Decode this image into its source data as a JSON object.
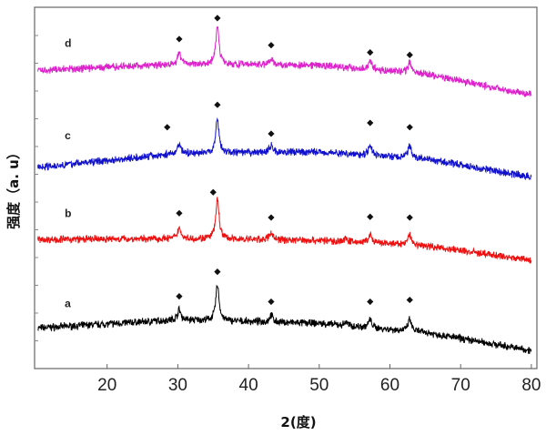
{
  "chart_data": {
    "type": "line",
    "xlabel": "2(度)",
    "ylabel": "强度（a. u）",
    "xlim": [
      10,
      80
    ],
    "ylim": [
      0,
      100
    ],
    "x_ticks": [
      20,
      30,
      40,
      50,
      60,
      70,
      80
    ],
    "y_tick_labels": false,
    "grid": false,
    "legend": "none",
    "marker_symbol": "◆",
    "series": [
      {
        "name": "a",
        "color": "#000000",
        "baseline": [
          [
            10,
            11.2
          ],
          [
            30,
            13.5
          ],
          [
            50,
            12.5
          ],
          [
            65,
            10
          ],
          [
            80,
            5
          ]
        ],
        "peaks": [
          [
            30.2,
            2.8
          ],
          [
            35.6,
            10
          ],
          [
            43.2,
            2
          ],
          [
            53.8,
            1
          ],
          [
            57.2,
            2.2
          ],
          [
            62.8,
            3.2
          ]
        ],
        "label_pos": [
          14,
          17
        ],
        "markers": [
          [
            30.2,
            20
          ],
          [
            35.6,
            26.8
          ],
          [
            43.2,
            18.5
          ],
          [
            57.2,
            18.5
          ],
          [
            62.8,
            19
          ]
        ]
      },
      {
        "name": "b",
        "color": "#ee1111",
        "baseline": [
          [
            10,
            35.7
          ],
          [
            30,
            36
          ],
          [
            50,
            35.5
          ],
          [
            65,
            34
          ],
          [
            80,
            30
          ]
        ],
        "peaks": [
          [
            30.2,
            3
          ],
          [
            35.6,
            11
          ],
          [
            43.2,
            2
          ],
          [
            53.8,
            0.8
          ],
          [
            57.2,
            2.2
          ],
          [
            62.8,
            3
          ]
        ],
        "label_pos": [
          14,
          42
        ],
        "markers": [
          [
            30.2,
            43
          ],
          [
            35.0,
            48.8
          ],
          [
            43.2,
            41.8
          ],
          [
            57.2,
            42
          ],
          [
            62.8,
            41.8
          ]
        ]
      },
      {
        "name": "c",
        "color": "#1111cc",
        "baseline": [
          [
            10,
            55.7
          ],
          [
            30,
            59.5
          ],
          [
            50,
            60
          ],
          [
            65,
            58
          ],
          [
            80,
            53
          ]
        ],
        "peaks": [
          [
            30.2,
            2.8
          ],
          [
            35.6,
            9.5
          ],
          [
            43.2,
            2
          ],
          [
            57.2,
            3
          ],
          [
            62.8,
            3.5
          ]
        ],
        "label_pos": [
          14,
          63.5
        ],
        "markers": [
          [
            28.5,
            66.8
          ],
          [
            35.6,
            73
          ],
          [
            43.2,
            65
          ],
          [
            57.2,
            68
          ],
          [
            62.8,
            66.8
          ]
        ]
      },
      {
        "name": "d",
        "color": "#dd22cc",
        "baseline": [
          [
            10,
            82.5
          ],
          [
            30,
            84.3
          ],
          [
            50,
            84
          ],
          [
            65,
            81.5
          ],
          [
            80,
            75.8
          ]
        ],
        "peaks": [
          [
            30.2,
            3
          ],
          [
            35.6,
            10.5
          ],
          [
            43.2,
            2
          ],
          [
            57.2,
            2.5
          ],
          [
            62.8,
            3
          ]
        ],
        "label_pos": [
          14,
          89
        ],
        "markers": [
          [
            30.2,
            91.2
          ],
          [
            35.6,
            97
          ],
          [
            43.2,
            89.5
          ],
          [
            57.2,
            87.5
          ],
          [
            62.8,
            86.8
          ]
        ]
      }
    ]
  }
}
